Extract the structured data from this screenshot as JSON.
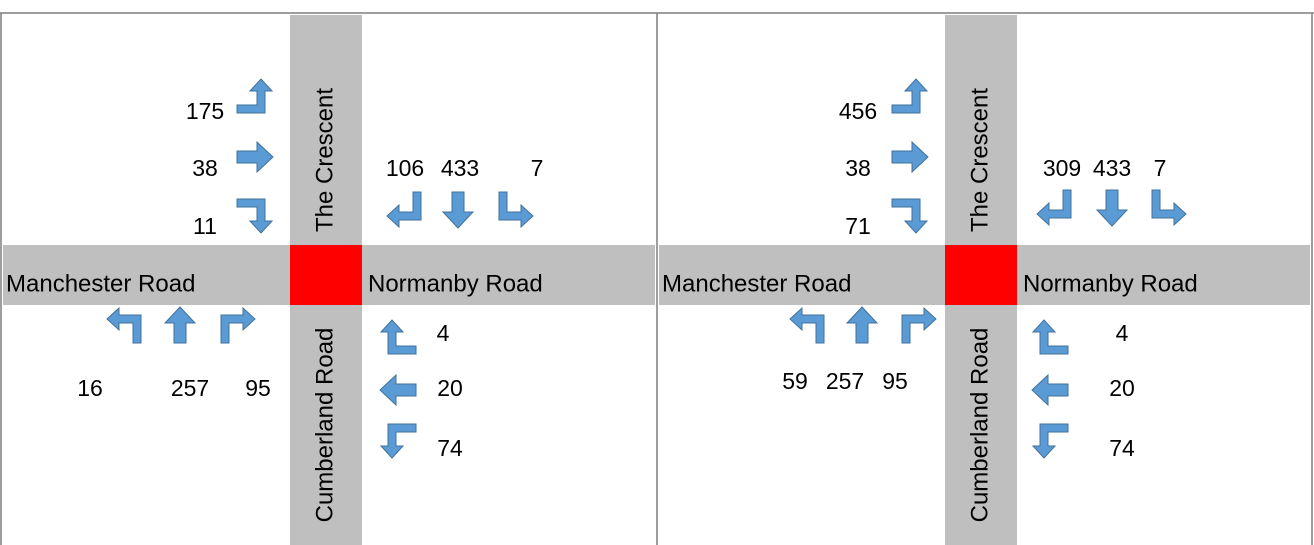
{
  "panels": [
    {
      "north_road": "The Crescent",
      "south_road": "Cumberland Road",
      "west_road": "Manchester Road",
      "east_road": "Normanby Road",
      "approaches": {
        "west": [
          "175",
          "38",
          "11"
        ],
        "north": [
          "106",
          "433",
          "7"
        ],
        "south": [
          "16",
          "257",
          "95"
        ],
        "east": [
          "4",
          "20",
          "74"
        ]
      }
    },
    {
      "north_road": "The Crescent",
      "south_road": "Cumberland Road",
      "west_road": "Manchester Road",
      "east_road": "Normanby Road",
      "approaches": {
        "west": [
          "456",
          "38",
          "71"
        ],
        "north": [
          "309",
          "433",
          "7"
        ],
        "south": [
          "59",
          "257",
          "95"
        ],
        "east": [
          "4",
          "20",
          "74"
        ]
      }
    }
  ]
}
